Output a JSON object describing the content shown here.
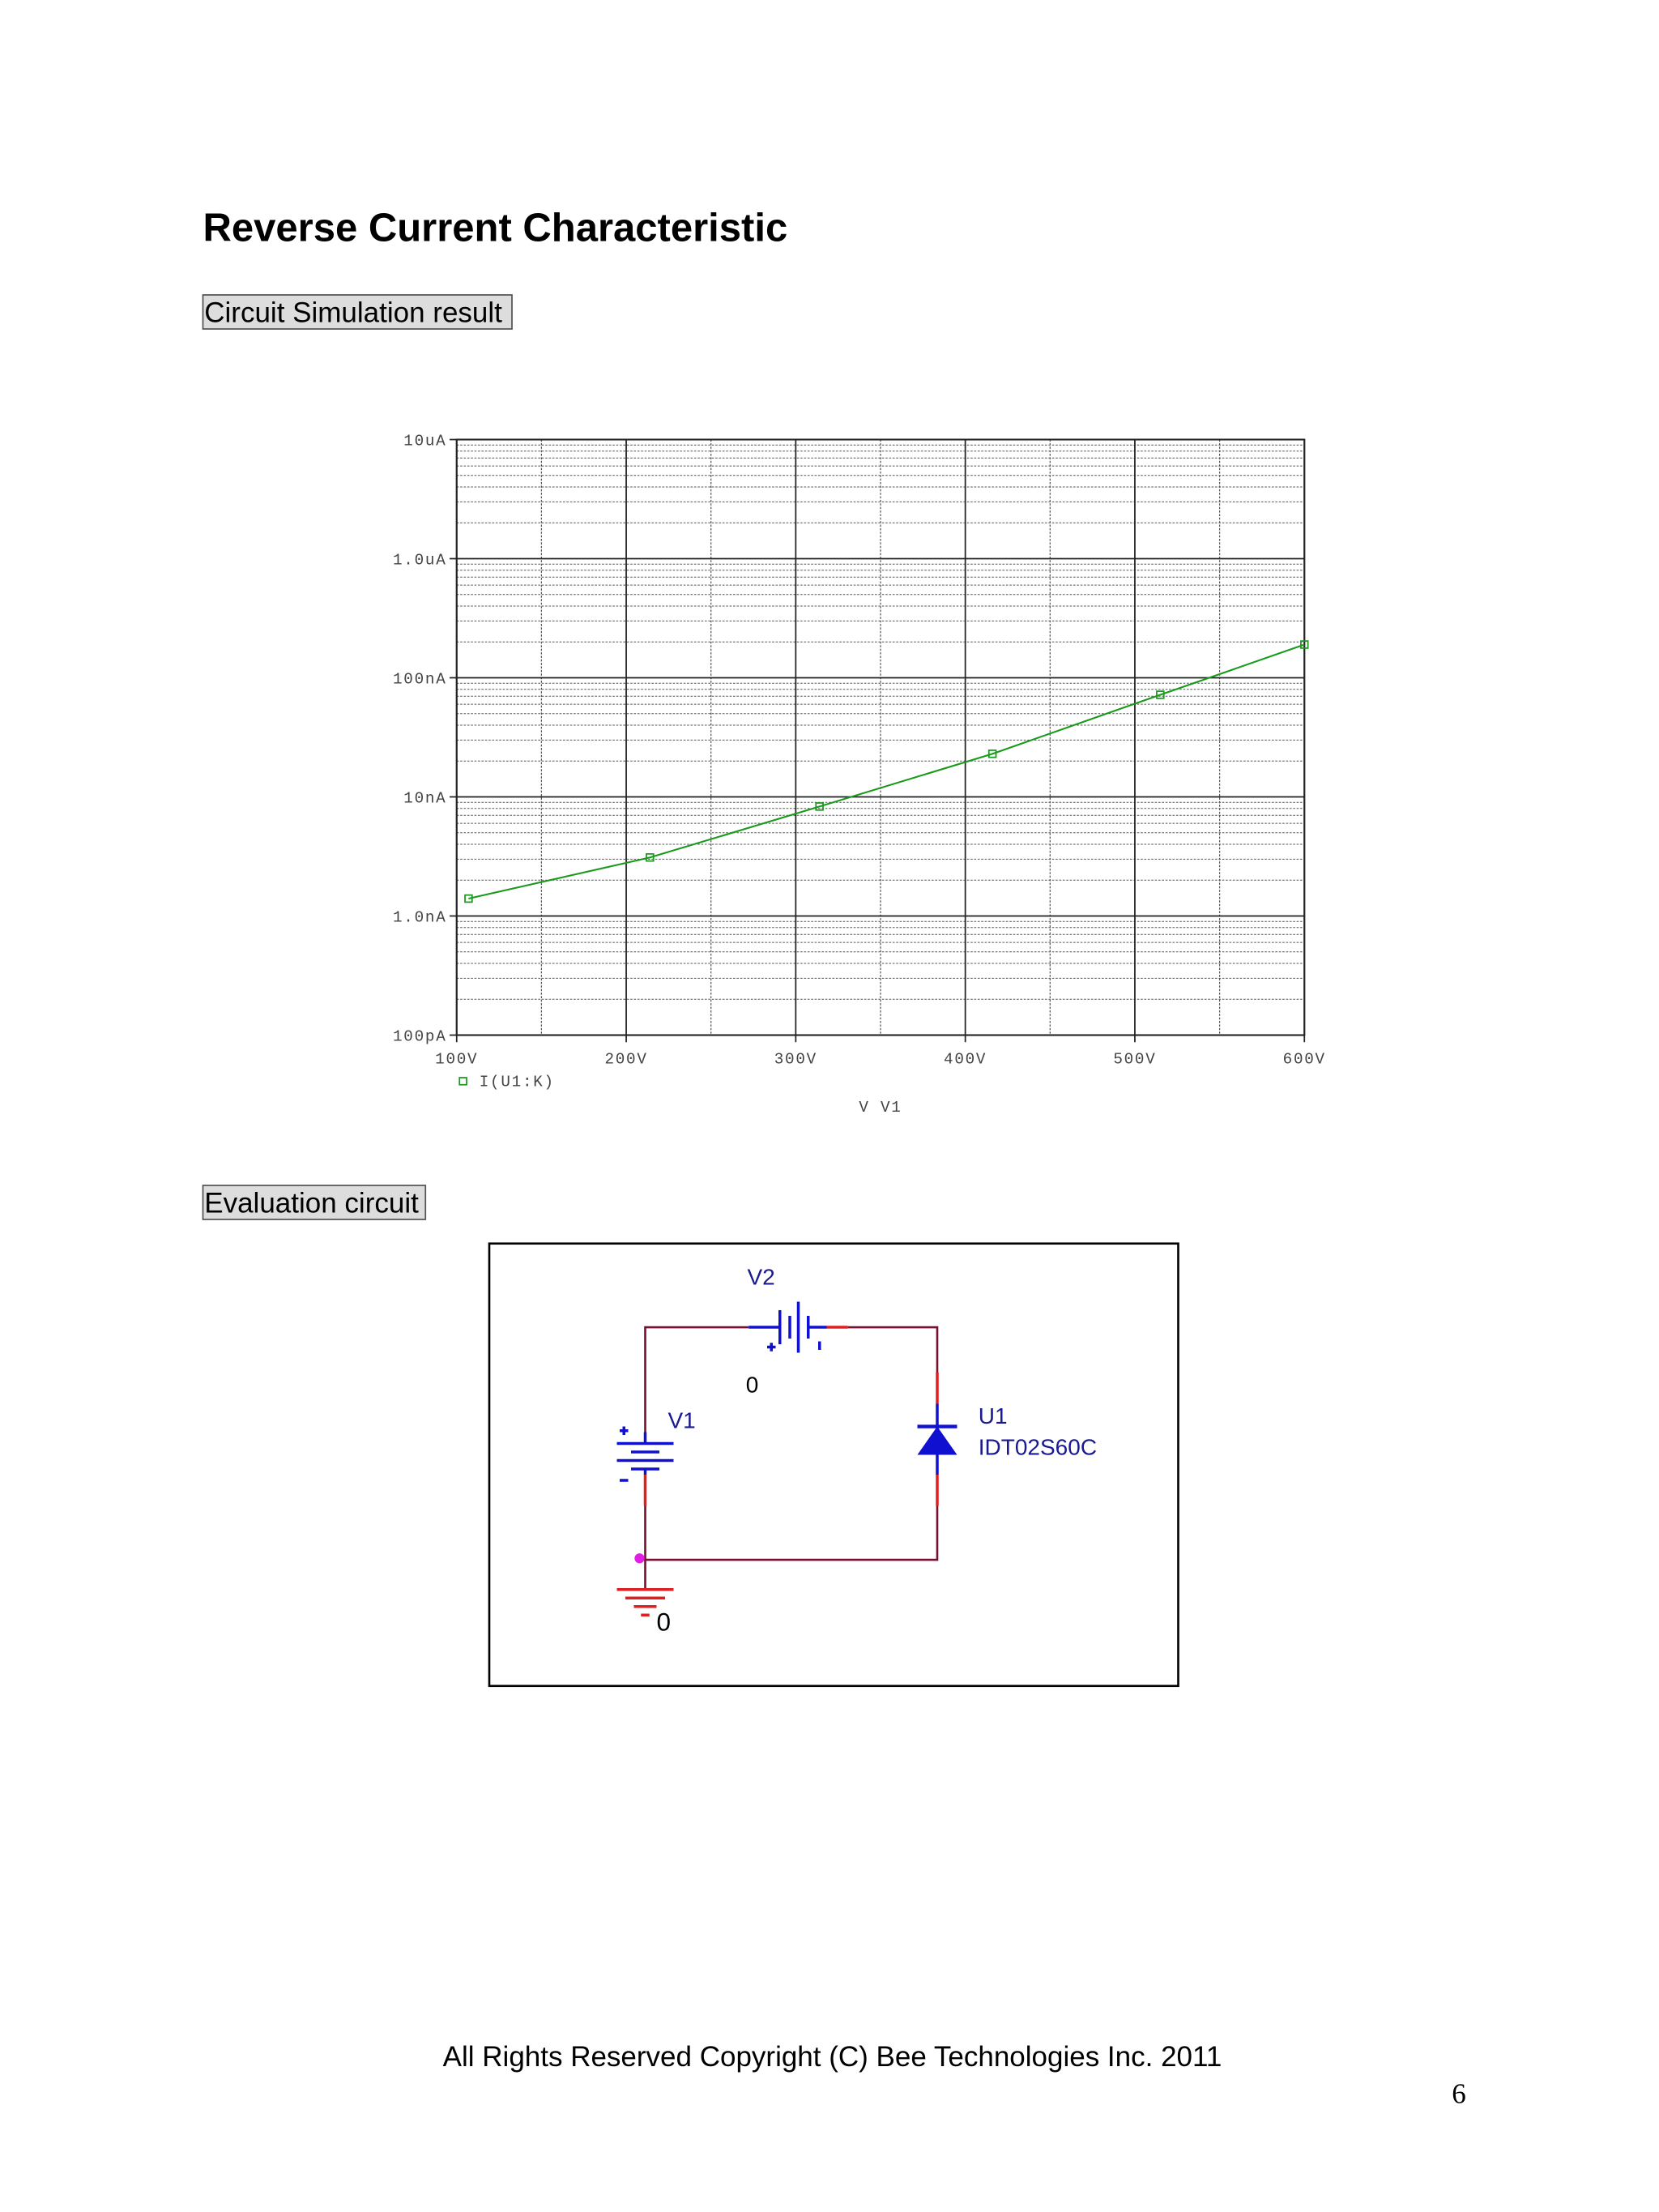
{
  "header": {
    "title": "Reverse Current Characteristic"
  },
  "sections": {
    "simulation": "Circuit Simulation result",
    "circuit": "Evaluation circuit"
  },
  "chart_data": {
    "type": "line",
    "log_y": true,
    "grid": true,
    "x_label": "V V1",
    "x": [
      107,
      214,
      314,
      416,
      515,
      600
    ],
    "series": [
      {
        "name": "I(U1:K)",
        "color": "#1a9a1a",
        "values": [
          1.4e-09,
          3.1e-09,
          8.3e-09,
          2.3e-08,
          7.2e-08,
          1.9e-07
        ]
      }
    ],
    "xlim": [
      100,
      600
    ],
    "xticks": [
      {
        "value": 100,
        "label": "100V"
      },
      {
        "value": 200,
        "label": "200V"
      },
      {
        "value": 300,
        "label": "300V"
      },
      {
        "value": 400,
        "label": "400V"
      },
      {
        "value": 500,
        "label": "500V"
      },
      {
        "value": 600,
        "label": "600V"
      }
    ],
    "ylim": [
      1e-10,
      1e-05
    ],
    "yticks": [
      {
        "value": 1e-10,
        "label": "100pA"
      },
      {
        "value": 1e-09,
        "label": "1.0nA"
      },
      {
        "value": 1e-08,
        "label": "10nA"
      },
      {
        "value": 1e-07,
        "label": "100nA"
      },
      {
        "value": 1e-06,
        "label": "1.0uA"
      },
      {
        "value": 1e-05,
        "label": "10uA"
      }
    ]
  },
  "circuit": {
    "v2_label": "V2",
    "v2_node": "0",
    "v1_label": "V1",
    "diode_ref": "U1",
    "diode_part": "IDT02S60C",
    "ground_label": "0"
  },
  "footer": {
    "copyright": "All Rights Reserved Copyright (C) Bee Technologies Inc. 2011",
    "page_number": "6"
  }
}
